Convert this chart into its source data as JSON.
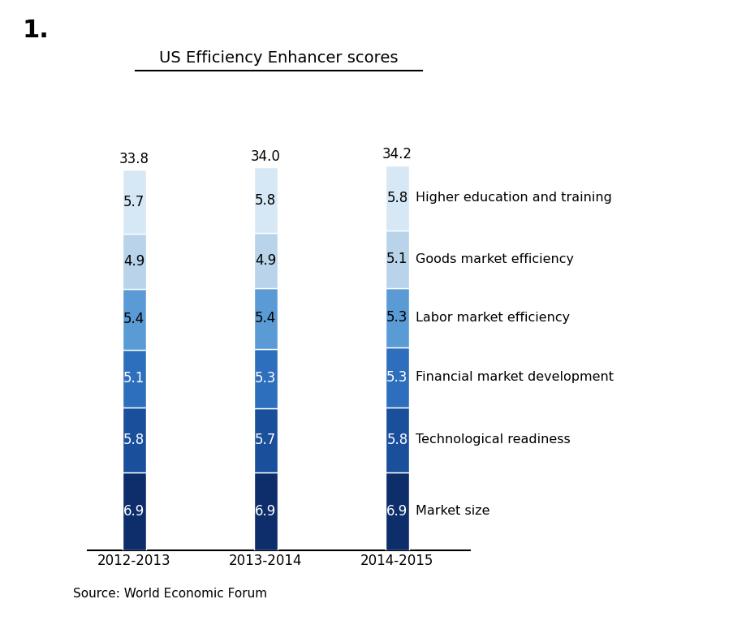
{
  "title": "US Efficiency Enhancer scores",
  "number_label": "1.",
  "source": "Source: World Economic Forum",
  "years": [
    "2012-2013",
    "2013-2014",
    "2014-2015"
  ],
  "totals": [
    "33.8",
    "34.0",
    "34.2"
  ],
  "categories": [
    "Market size",
    "Technological readiness",
    "Financial market development",
    "Labor market efficiency",
    "Goods market efficiency",
    "Higher education and training"
  ],
  "values": {
    "2012-2013": [
      6.9,
      5.8,
      5.1,
      5.4,
      4.9,
      5.7
    ],
    "2013-2014": [
      6.9,
      5.7,
      5.3,
      5.4,
      4.9,
      5.8
    ],
    "2014-2015": [
      6.9,
      5.8,
      5.3,
      5.3,
      5.1,
      5.8
    ]
  },
  "colors": [
    "#0d2d6b",
    "#1a4f9c",
    "#2e6fbd",
    "#5b9bd5",
    "#b8d3ea",
    "#d6e8f5"
  ],
  "text_colors": [
    "white",
    "white",
    "white",
    "black",
    "black",
    "black"
  ],
  "bar_width": 0.18,
  "bar_positions": [
    1,
    2,
    3
  ],
  "figsize": [
    9.04,
    7.7
  ],
  "dpi": 100,
  "ylim": [
    0,
    40
  ],
  "legend_labels_right": [
    "Higher education and training",
    "Goods market efficiency",
    "Labor market efficiency",
    "Financial market development",
    "Technological readiness",
    "Market size"
  ]
}
